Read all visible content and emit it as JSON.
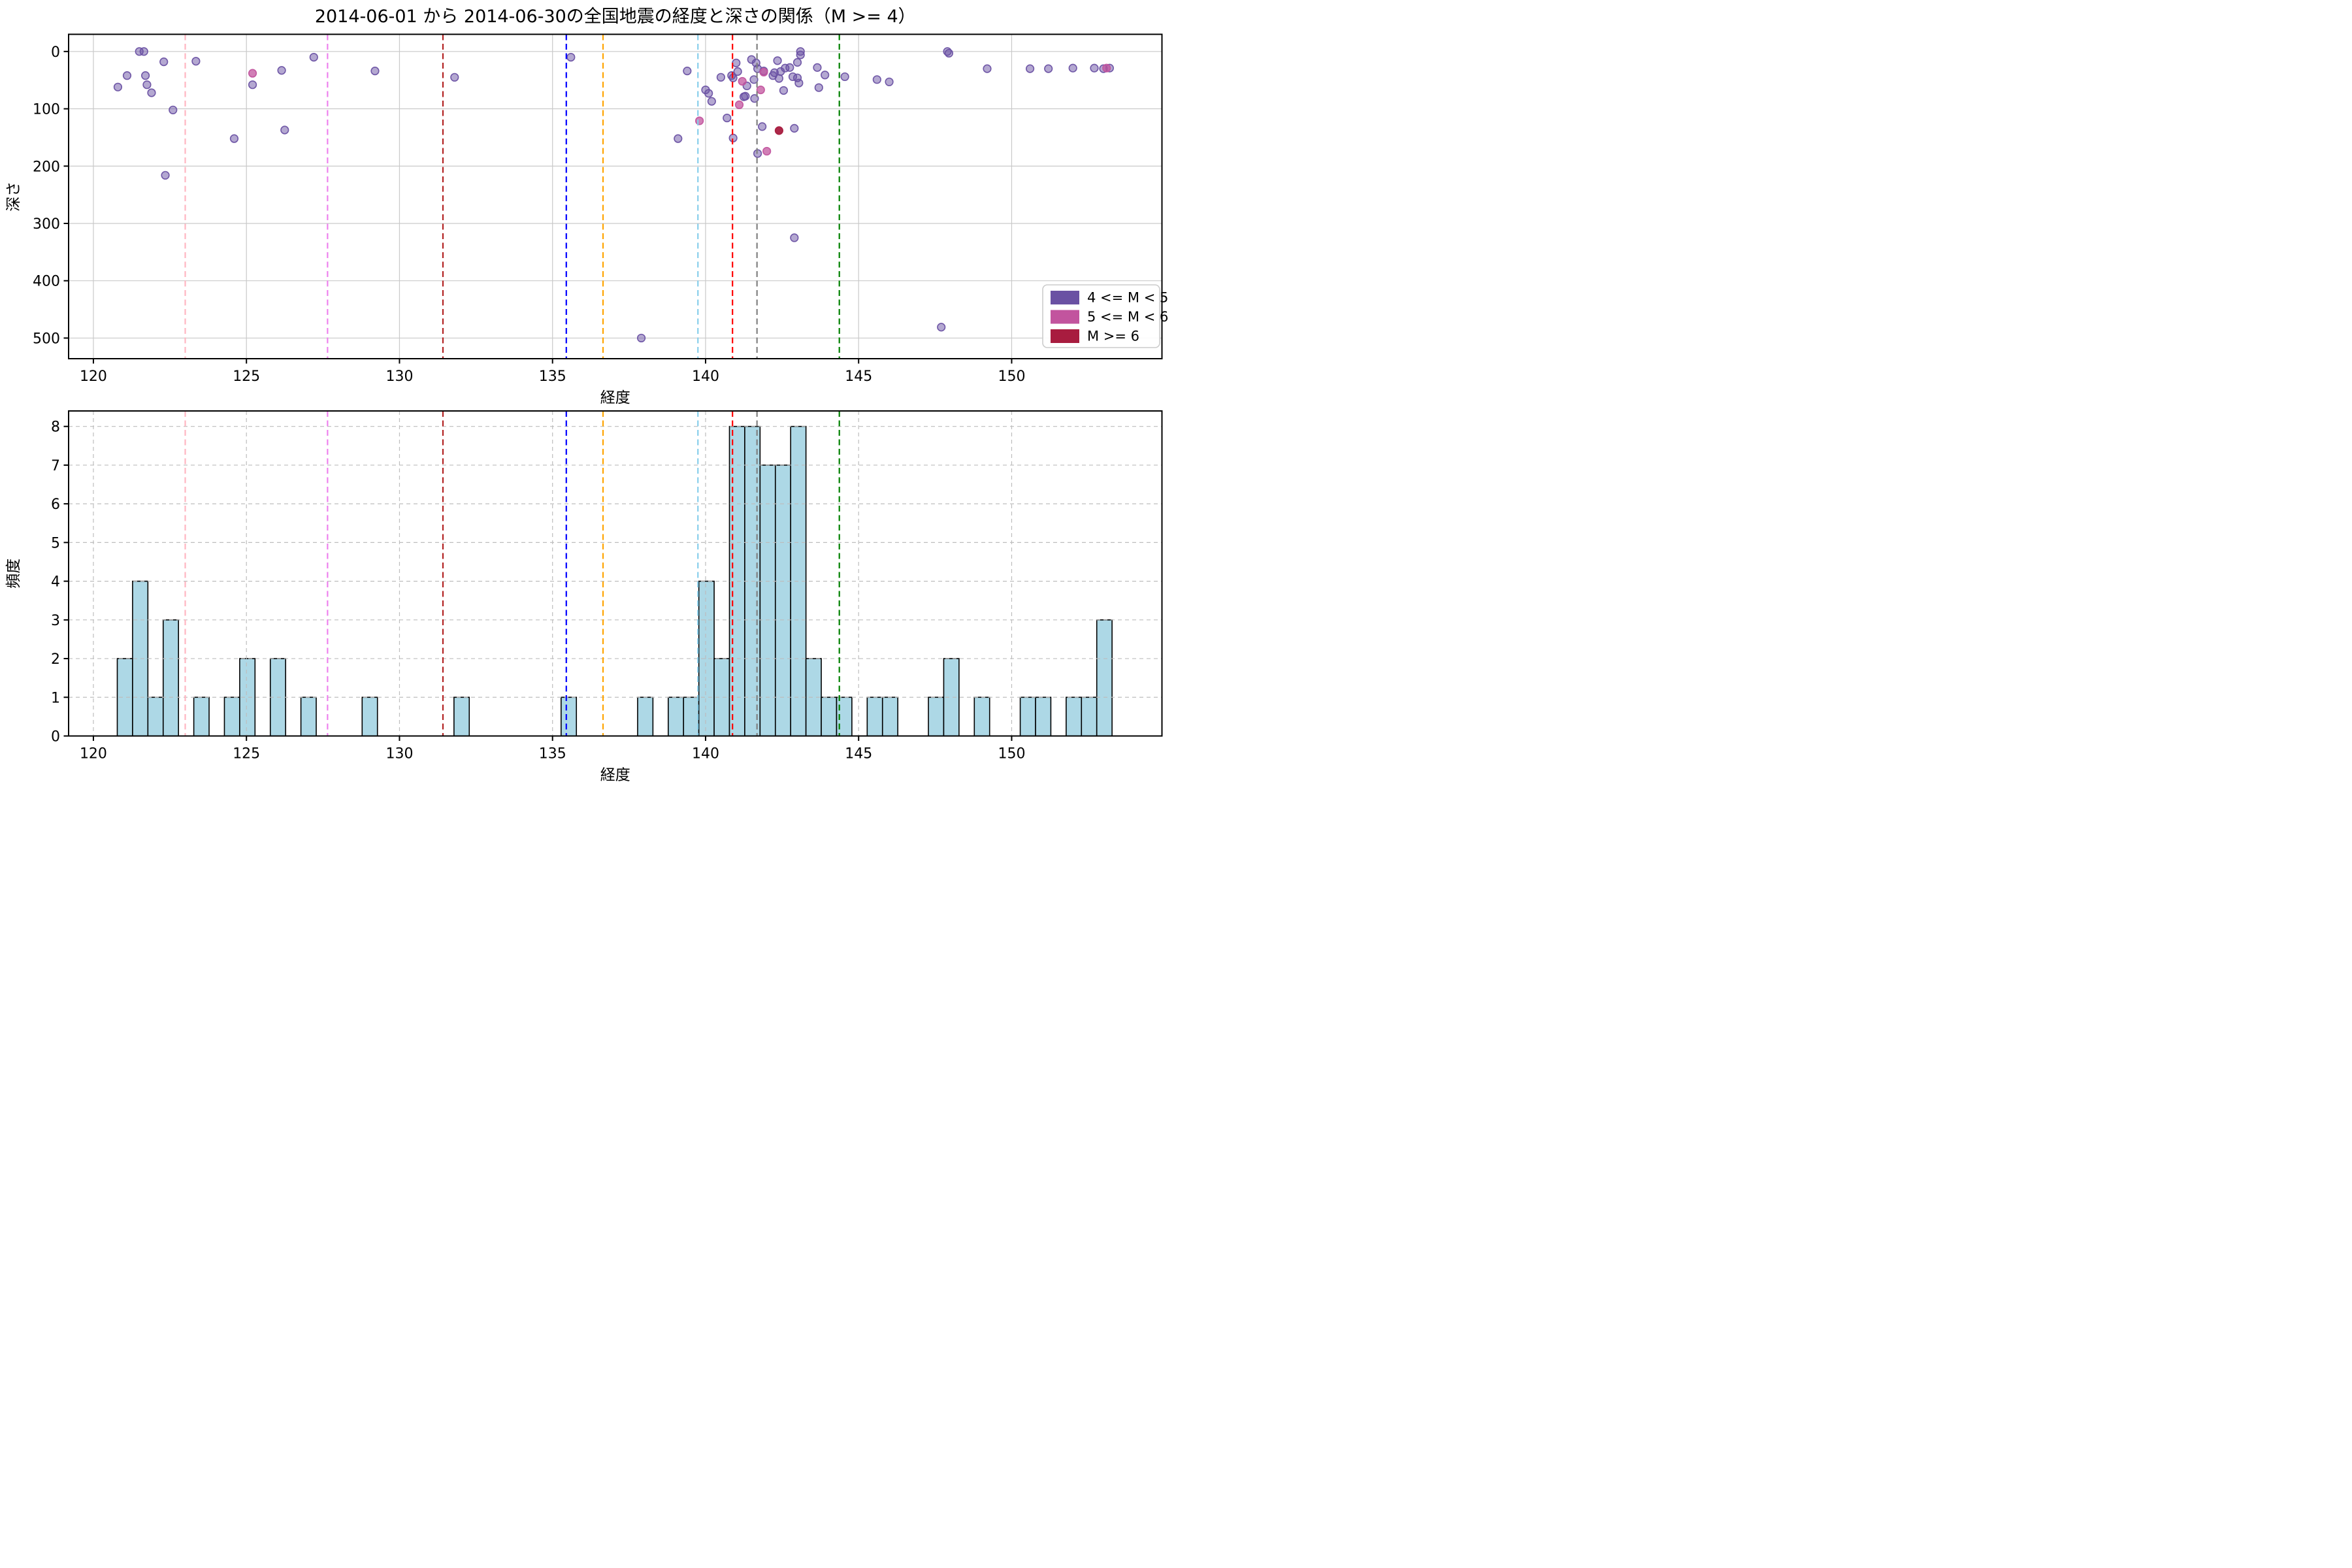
{
  "page": {
    "background": "#ffffff"
  },
  "title": "2014-06-01 から 2014-06-30の全国地震の経度と深さの関係（M >= 4）",
  "reference_lines": [
    {
      "x": 123.0,
      "color": "#ffb6c1"
    },
    {
      "x": 127.65,
      "color": "#ee82ee"
    },
    {
      "x": 131.42,
      "color": "#b22222"
    },
    {
      "x": 135.45,
      "color": "#0000ff"
    },
    {
      "x": 136.65,
      "color": "#ffa500"
    },
    {
      "x": 139.75,
      "color": "#87ceeb"
    },
    {
      "x": 140.88,
      "color": "#ff0000"
    },
    {
      "x": 141.68,
      "color": "#808080"
    },
    {
      "x": 144.37,
      "color": "#008000"
    }
  ],
  "chart_data": [
    {
      "type": "scatter",
      "title": "2014-06-01 から 2014-06-30の全国地震の経度と深さの関係（M >= 4）",
      "xlabel": "経度",
      "ylabel": "深さ",
      "xlim": [
        119.19,
        154.91
      ],
      "ylim": [
        -30,
        536
      ],
      "y_inverted": true,
      "xticks": [
        120,
        125,
        130,
        135,
        140,
        145,
        150
      ],
      "yticks": [
        0,
        100,
        200,
        300,
        400,
        500
      ],
      "grid": {
        "linestyle": "solid",
        "color": "#c9c9c9"
      },
      "legend": {
        "location": "lower right"
      },
      "series": [
        {
          "name": "4 <= M < 5",
          "color": "#6a51a3",
          "fill_alpha": 0.5,
          "points": [
            [
              120.8,
              62
            ],
            [
              121.1,
              42
            ],
            [
              121.5,
              0
            ],
            [
              121.65,
              0
            ],
            [
              121.7,
              42
            ],
            [
              121.75,
              58
            ],
            [
              121.9,
              72
            ],
            [
              122.3,
              18
            ],
            [
              122.35,
              216
            ],
            [
              122.6,
              102
            ],
            [
              123.35,
              17
            ],
            [
              124.6,
              152
            ],
            [
              125.2,
              58
            ],
            [
              126.15,
              33
            ],
            [
              126.25,
              137
            ],
            [
              127.2,
              10
            ],
            [
              129.2,
              34
            ],
            [
              131.8,
              45
            ],
            [
              135.6,
              10
            ],
            [
              137.9,
              500
            ],
            [
              139.1,
              152
            ],
            [
              139.4,
              34
            ],
            [
              140.0,
              67
            ],
            [
              140.1,
              73
            ],
            [
              140.2,
              87
            ],
            [
              140.5,
              45
            ],
            [
              140.7,
              116
            ],
            [
              140.85,
              42
            ],
            [
              140.9,
              46
            ],
            [
              141.0,
              20
            ],
            [
              140.9,
              151
            ],
            [
              141.05,
              35
            ],
            [
              141.25,
              79
            ],
            [
              141.3,
              78
            ],
            [
              141.35,
              60
            ],
            [
              141.5,
              14
            ],
            [
              141.58,
              49
            ],
            [
              141.6,
              82
            ],
            [
              141.65,
              20
            ],
            [
              141.7,
              30
            ],
            [
              141.7,
              178
            ],
            [
              141.85,
              131
            ],
            [
              141.9,
              34
            ],
            [
              142.2,
              42
            ],
            [
              142.25,
              37
            ],
            [
              142.35,
              16
            ],
            [
              142.4,
              47
            ],
            [
              142.45,
              35
            ],
            [
              142.55,
              68
            ],
            [
              142.6,
              29
            ],
            [
              142.75,
              28
            ],
            [
              142.85,
              44
            ],
            [
              142.9,
              134
            ],
            [
              142.9,
              325
            ],
            [
              143.0,
              46
            ],
            [
              143.05,
              55
            ],
            [
              143.0,
              19
            ],
            [
              143.1,
              0
            ],
            [
              143.1,
              6
            ],
            [
              143.65,
              28
            ],
            [
              143.7,
              63
            ],
            [
              143.9,
              41
            ],
            [
              144.55,
              44
            ],
            [
              145.6,
              49
            ],
            [
              146.0,
              53
            ],
            [
              147.7,
              481
            ],
            [
              147.9,
              0
            ],
            [
              147.95,
              3
            ],
            [
              149.2,
              30
            ],
            [
              150.6,
              30
            ],
            [
              151.2,
              30
            ],
            [
              152.0,
              29
            ],
            [
              152.7,
              29
            ],
            [
              153.0,
              30
            ],
            [
              153.2,
              29
            ]
          ]
        },
        {
          "name": "5 <= M < 6",
          "color": "#c2549e",
          "fill_alpha": 0.75,
          "points": [
            [
              125.2,
              38
            ],
            [
              139.8,
              121
            ],
            [
              141.1,
              93
            ],
            [
              141.2,
              52
            ],
            [
              141.8,
              67
            ],
            [
              141.9,
              36
            ],
            [
              142.0,
              174
            ],
            [
              153.1,
              29
            ]
          ]
        },
        {
          "name": "M >= 6",
          "color": "#a81c3f",
          "fill_alpha": 0.95,
          "points": [
            [
              142.4,
              138
            ]
          ]
        }
      ]
    },
    {
      "type": "histogram",
      "xlabel": "経度",
      "ylabel": "頻度",
      "xlim": [
        119.19,
        154.91
      ],
      "ylim": [
        0,
        8.4
      ],
      "xticks": [
        120,
        125,
        130,
        135,
        140,
        145,
        150
      ],
      "yticks": [
        0,
        1,
        2,
        3,
        4,
        5,
        6,
        7,
        8
      ],
      "bar_color": "#add8e6",
      "bar_edge_color": "#000000",
      "bin_start": 120.78,
      "bin_width": 0.5,
      "counts": [
        2,
        4,
        1,
        3,
        0,
        1,
        0,
        1,
        2,
        0,
        2,
        0,
        1,
        0,
        0,
        0,
        1,
        0,
        0,
        0,
        0,
        0,
        1,
        0,
        0,
        0,
        0,
        0,
        0,
        1,
        0,
        0,
        0,
        0,
        1,
        0,
        1,
        1,
        4,
        2,
        8,
        8,
        7,
        7,
        8,
        2,
        1,
        1,
        0,
        1,
        1,
        0,
        0,
        1,
        2,
        0,
        1,
        0,
        0,
        1,
        1,
        0,
        1,
        1,
        3
      ],
      "grid": {
        "linestyle": "dashed",
        "color": "#bdbdbd"
      }
    }
  ]
}
